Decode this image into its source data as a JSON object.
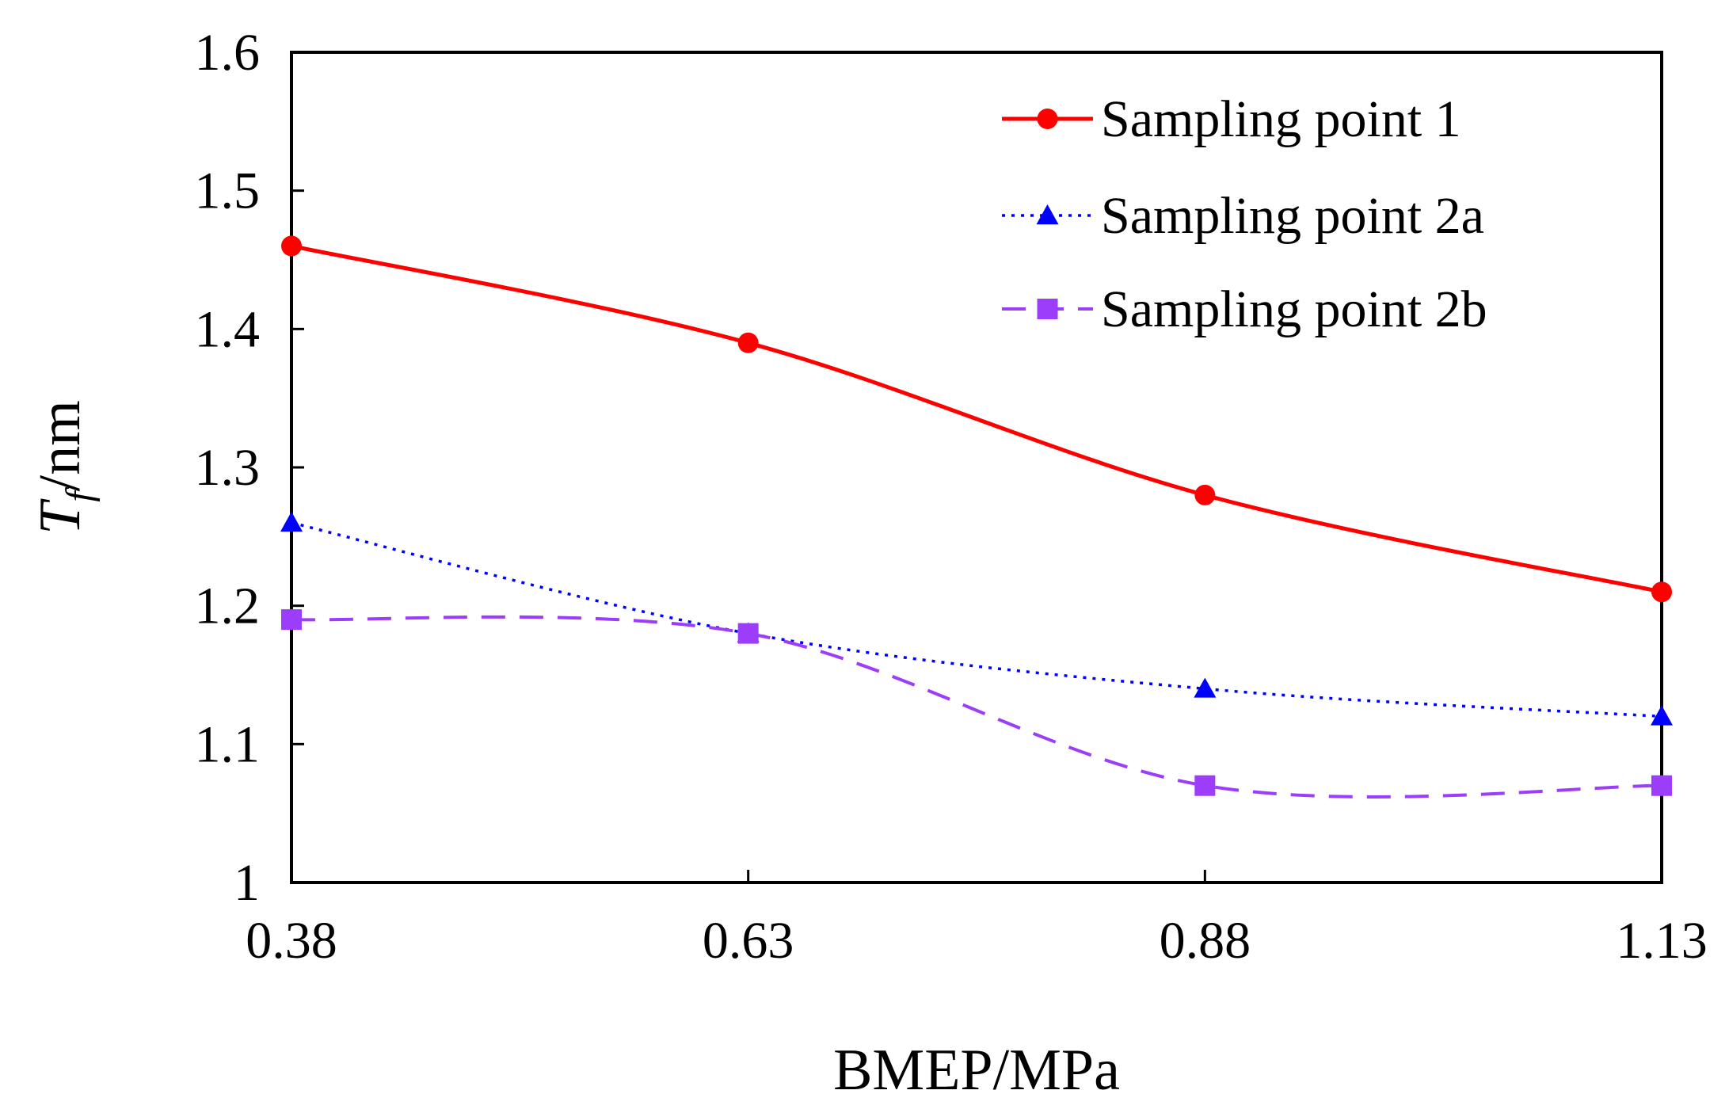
{
  "chart_data": {
    "type": "line",
    "title": "",
    "xlabel": "BMEP/MPa",
    "ylabel": {
      "main": "T",
      "sub": "f",
      "suffix": "/nm"
    },
    "x": [
      0.38,
      0.63,
      0.88,
      1.13
    ],
    "x_tick_labels": [
      "0.38",
      "0.63",
      "0.88",
      "1.13"
    ],
    "y_tick_labels": [
      "1",
      "1.1",
      "1.2",
      "1.3",
      "1.4",
      "1.5",
      "1.6"
    ],
    "ylim": [
      1,
      1.6
    ],
    "xlim": [
      0.38,
      1.13
    ],
    "grid": false,
    "legend_position": "top-right",
    "series": [
      {
        "name": "Sampling point 1",
        "values": [
          1.46,
          1.39,
          1.28,
          1.21
        ],
        "color": "#ff0000",
        "line_style": "solid",
        "marker": "circle"
      },
      {
        "name": "Sampling point 2a",
        "values": [
          1.26,
          1.18,
          1.14,
          1.12
        ],
        "color": "#0000ff",
        "line_style": "dotted",
        "marker": "triangle"
      },
      {
        "name": "Sampling point 2b",
        "values": [
          1.19,
          1.18,
          1.07,
          1.07
        ],
        "color": "#9b3dfa",
        "line_style": "dashed",
        "marker": "square"
      }
    ]
  }
}
